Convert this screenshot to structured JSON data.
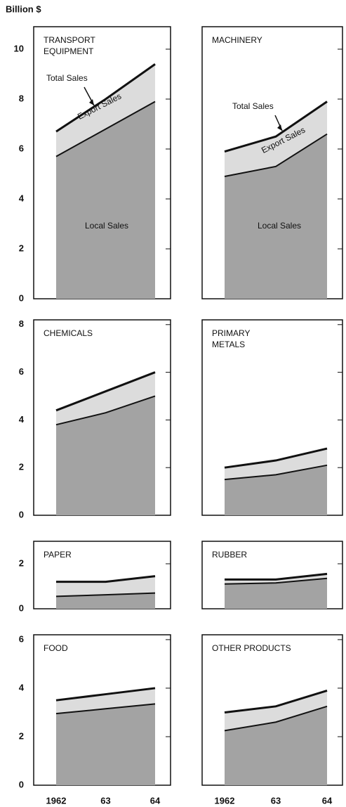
{
  "chart_data": [
    {
      "type": "area",
      "y_label": "Billion $",
      "title": [
        "TRANSPORT",
        "EQUIPMENT"
      ],
      "categories": [
        null,
        null,
        null
      ],
      "series": [
        {
          "name": "Local Sales",
          "color": "#a3a3a3",
          "values": [
            5.7,
            6.8,
            7.9
          ]
        },
        {
          "name": "Export Sales",
          "color": "#dcdcdc",
          "values": [
            1.0,
            1.2,
            1.5
          ]
        }
      ],
      "annotations": [
        "Total Sales",
        "Export Sales",
        "Local Sales"
      ],
      "ylim": [
        0,
        10.9
      ],
      "yticks": [
        0,
        2,
        4,
        6,
        8,
        10
      ]
    },
    {
      "type": "area",
      "title": [
        "MACHINERY"
      ],
      "categories": [
        null,
        null,
        null
      ],
      "series": [
        {
          "name": "Local Sales",
          "color": "#a3a3a3",
          "values": [
            4.9,
            5.3,
            6.6
          ]
        },
        {
          "name": "Export Sales",
          "color": "#dcdcdc",
          "values": [
            1.0,
            1.2,
            1.3
          ]
        }
      ],
      "annotations": [
        "Total Sales",
        "Export Sales",
        "Local Sales"
      ],
      "ylim": [
        0,
        10.9
      ]
    },
    {
      "type": "area",
      "title": [
        "CHEMICALS"
      ],
      "categories": [
        null,
        null,
        null
      ],
      "series": [
        {
          "name": "Local Sales",
          "color": "#a3a3a3",
          "values": [
            3.8,
            4.3,
            5.0
          ]
        },
        {
          "name": "Export Sales",
          "color": "#dcdcdc",
          "values": [
            0.6,
            0.9,
            1.0
          ]
        }
      ],
      "ylim": [
        0,
        8.2
      ],
      "yticks": [
        0,
        2,
        4,
        6,
        8
      ]
    },
    {
      "type": "area",
      "title": [
        "PRIMARY",
        "METALS"
      ],
      "categories": [
        null,
        null,
        null
      ],
      "series": [
        {
          "name": "Local Sales",
          "color": "#a3a3a3",
          "values": [
            1.5,
            1.7,
            2.1
          ]
        },
        {
          "name": "Export Sales",
          "color": "#dcdcdc",
          "values": [
            0.5,
            0.6,
            0.7
          ]
        }
      ],
      "ylim": [
        0,
        8.2
      ]
    },
    {
      "type": "area",
      "title": [
        "PAPER"
      ],
      "categories": [
        null,
        null,
        null
      ],
      "series": [
        {
          "name": "Local Sales",
          "color": "#a3a3a3",
          "values": [
            0.55,
            0.62,
            0.7
          ]
        },
        {
          "name": "Export Sales",
          "color": "#dcdcdc",
          "values": [
            0.65,
            0.58,
            0.75
          ]
        }
      ],
      "ylim": [
        0,
        3
      ],
      "yticks": [
        0,
        2
      ]
    },
    {
      "type": "area",
      "title": [
        "RUBBER"
      ],
      "categories": [
        null,
        null,
        null
      ],
      "series": [
        {
          "name": "Local Sales",
          "color": "#a3a3a3",
          "values": [
            1.1,
            1.15,
            1.35
          ]
        },
        {
          "name": "Export Sales",
          "color": "#dcdcdc",
          "values": [
            0.2,
            0.15,
            0.2
          ]
        }
      ],
      "ylim": [
        0,
        3
      ]
    },
    {
      "type": "area",
      "title": [
        "FOOD"
      ],
      "categories": [
        "1962",
        "63",
        "64"
      ],
      "series": [
        {
          "name": "Local Sales",
          "color": "#a3a3a3",
          "values": [
            2.95,
            3.15,
            3.35
          ]
        },
        {
          "name": "Export Sales",
          "color": "#dcdcdc",
          "values": [
            0.55,
            0.6,
            0.65
          ]
        }
      ],
      "ylim": [
        0,
        6.2
      ],
      "yticks": [
        0,
        2,
        4,
        6
      ]
    },
    {
      "type": "area",
      "title": [
        "OTHER PRODUCTS"
      ],
      "categories": [
        "1962",
        "63",
        "64"
      ],
      "series": [
        {
          "name": "Local Sales",
          "color": "#a3a3a3",
          "values": [
            2.25,
            2.6,
            3.25
          ]
        },
        {
          "name": "Export Sales",
          "color": "#dcdcdc",
          "values": [
            0.75,
            0.65,
            0.65
          ]
        }
      ],
      "ylim": [
        0,
        6.2
      ]
    }
  ]
}
